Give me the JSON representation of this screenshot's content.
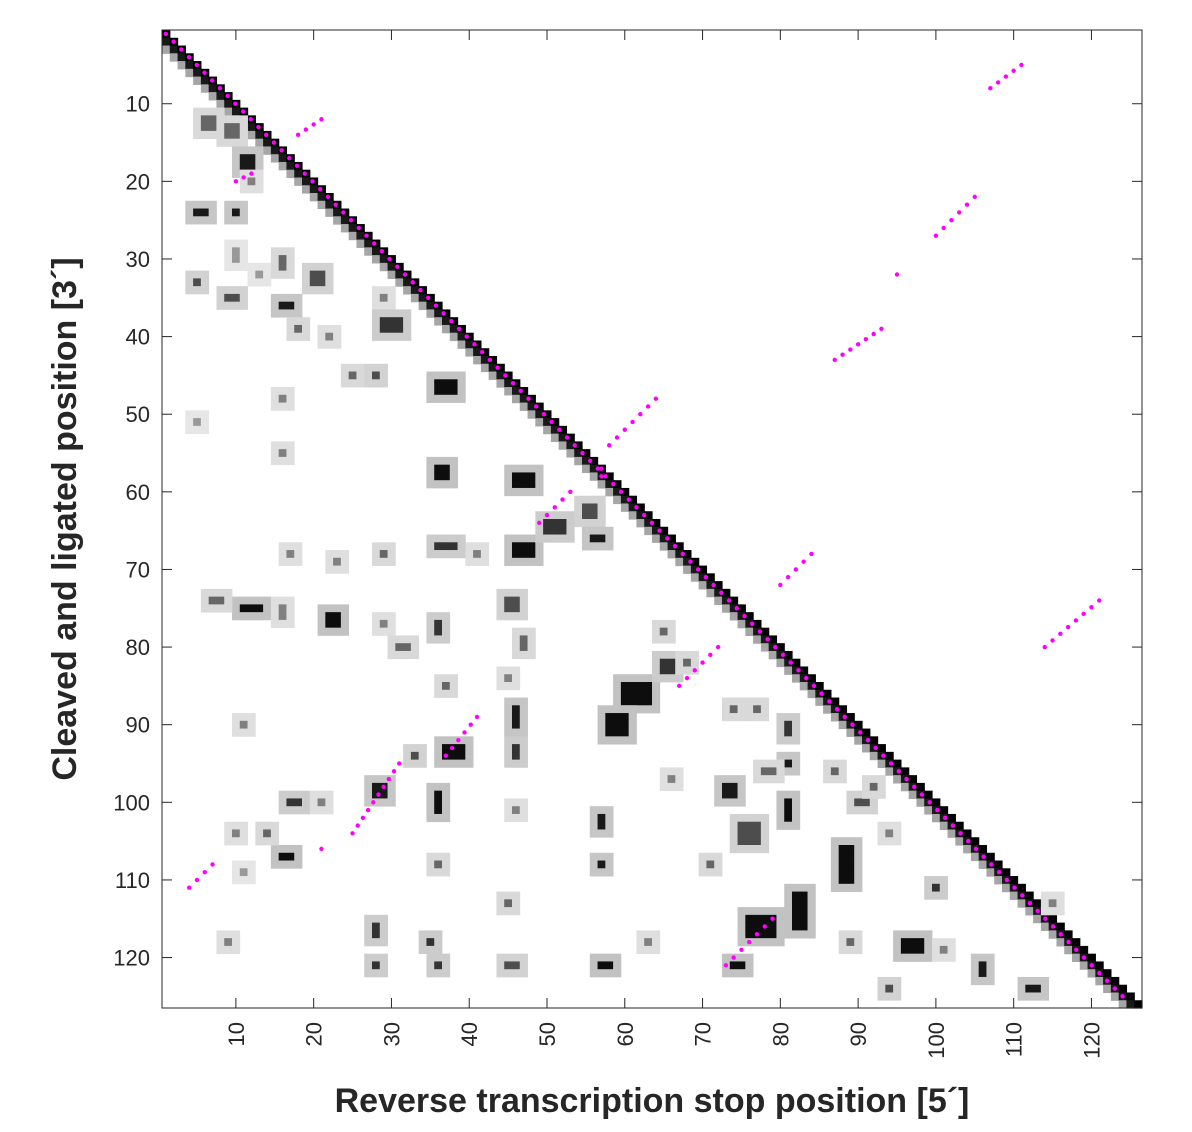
{
  "chart_data": {
    "type": "heatmap",
    "title": "",
    "xlabel": "Reverse transcription stop position [5´]",
    "ylabel": "Cleaved and ligated position [3´]",
    "xlim": [
      0,
      126
    ],
    "ylim": [
      126,
      0
    ],
    "x_ticks": [
      10,
      20,
      30,
      40,
      50,
      60,
      70,
      80,
      90,
      100,
      110,
      120
    ],
    "y_ticks": [
      10,
      20,
      30,
      40,
      50,
      60,
      70,
      80,
      90,
      100,
      110,
      120
    ],
    "colormap": [
      "#ffffff",
      "#000000"
    ],
    "diagonal": {
      "from": 1,
      "to": 126,
      "offset": 3
    },
    "blobs": [
      [
        6,
        12,
        2,
        2,
        0.6
      ],
      [
        9,
        13,
        2,
        2,
        0.6
      ],
      [
        11,
        17,
        2,
        2,
        0.9
      ],
      [
        12,
        20,
        1,
        1,
        0.5
      ],
      [
        5,
        24,
        2,
        1,
        0.9
      ],
      [
        10,
        24,
        1,
        1,
        0.9
      ],
      [
        10,
        29,
        1,
        2,
        0.4
      ],
      [
        5,
        33,
        1,
        1,
        0.7
      ],
      [
        9,
        35,
        2,
        1,
        0.7
      ],
      [
        13,
        32,
        1,
        1,
        0.4
      ],
      [
        16,
        30,
        1,
        2,
        0.6
      ],
      [
        16,
        36,
        2,
        1,
        0.9
      ],
      [
        20,
        32,
        2,
        2,
        0.7
      ],
      [
        18,
        39,
        1,
        1,
        0.6
      ],
      [
        22,
        40,
        1,
        1,
        0.5
      ],
      [
        29,
        35,
        1,
        1,
        0.5
      ],
      [
        29,
        38,
        3,
        2,
        0.8
      ],
      [
        25,
        45,
        1,
        1,
        0.6
      ],
      [
        28,
        45,
        1,
        1,
        0.7
      ],
      [
        16,
        48,
        1,
        1,
        0.5
      ],
      [
        5,
        51,
        1,
        1,
        0.4
      ],
      [
        16,
        55,
        1,
        1,
        0.5
      ],
      [
        36,
        46,
        3,
        2,
        0.95
      ],
      [
        36,
        57,
        2,
        2,
        0.95
      ],
      [
        46,
        58,
        3,
        2,
        0.95
      ],
      [
        46,
        67,
        3,
        2,
        0.95
      ],
      [
        50,
        64,
        3,
        2,
        0.8
      ],
      [
        55,
        62,
        2,
        2,
        0.7
      ],
      [
        56,
        66,
        2,
        1,
        0.9
      ],
      [
        36,
        67,
        3,
        1,
        0.8
      ],
      [
        41,
        68,
        1,
        1,
        0.5
      ],
      [
        29,
        68,
        1,
        1,
        0.6
      ],
      [
        23,
        69,
        1,
        1,
        0.5
      ],
      [
        17,
        68,
        1,
        1,
        0.5
      ],
      [
        11,
        75,
        3,
        1,
        0.95
      ],
      [
        7,
        74,
        2,
        1,
        0.6
      ],
      [
        22,
        76,
        2,
        2,
        0.95
      ],
      [
        16,
        75,
        1,
        2,
        0.5
      ],
      [
        29,
        77,
        1,
        1,
        0.5
      ],
      [
        36,
        77,
        1,
        2,
        0.8
      ],
      [
        31,
        80,
        2,
        1,
        0.6
      ],
      [
        45,
        74,
        2,
        2,
        0.7
      ],
      [
        47,
        79,
        1,
        2,
        0.6
      ],
      [
        45,
        84,
        1,
        1,
        0.5
      ],
      [
        37,
        85,
        1,
        1,
        0.6
      ],
      [
        60,
        85,
        4,
        3,
        0.95
      ],
      [
        58,
        89,
        3,
        3,
        0.95
      ],
      [
        65,
        82,
        2,
        2,
        0.8
      ],
      [
        65,
        78,
        1,
        1,
        0.6
      ],
      [
        68,
        82,
        1,
        1,
        0.6
      ],
      [
        46,
        88,
        1,
        3,
        0.9
      ],
      [
        46,
        93,
        1,
        2,
        0.8
      ],
      [
        11,
        90,
        1,
        1,
        0.5
      ],
      [
        37,
        93,
        3,
        2,
        0.95
      ],
      [
        33,
        94,
        1,
        1,
        0.7
      ],
      [
        28,
        98,
        2,
        2,
        0.9
      ],
      [
        17,
        100,
        2,
        1,
        0.8
      ],
      [
        21,
        100,
        1,
        1,
        0.5
      ],
      [
        36,
        99,
        1,
        3,
        0.95
      ],
      [
        36,
        108,
        1,
        1,
        0.6
      ],
      [
        16,
        107,
        2,
        1,
        0.95
      ],
      [
        14,
        104,
        1,
        1,
        0.6
      ],
      [
        10,
        104,
        1,
        1,
        0.5
      ],
      [
        11,
        109,
        1,
        1,
        0.4
      ],
      [
        9,
        118,
        1,
        1,
        0.5
      ],
      [
        28,
        116,
        1,
        2,
        0.8
      ],
      [
        28,
        121,
        1,
        1,
        0.8
      ],
      [
        35,
        118,
        1,
        1,
        0.8
      ],
      [
        36,
        121,
        1,
        1,
        0.8
      ],
      [
        45,
        121,
        2,
        1,
        0.7
      ],
      [
        45,
        113,
        1,
        1,
        0.6
      ],
      [
        46,
        101,
        1,
        1,
        0.5
      ],
      [
        57,
        102,
        1,
        2,
        0.9
      ],
      [
        57,
        108,
        1,
        1,
        0.9
      ],
      [
        57,
        121,
        2,
        1,
        0.95
      ],
      [
        63,
        118,
        1,
        1,
        0.5
      ],
      [
        66,
        97,
        1,
        1,
        0.5
      ],
      [
        73,
        98,
        2,
        2,
        0.9
      ],
      [
        74,
        88,
        1,
        1,
        0.6
      ],
      [
        77,
        88,
        1,
        1,
        0.6
      ],
      [
        81,
        90,
        1,
        2,
        0.8
      ],
      [
        81,
        95,
        1,
        1,
        0.9
      ],
      [
        78,
        96,
        2,
        1,
        0.6
      ],
      [
        81,
        100,
        1,
        3,
        0.95
      ],
      [
        75,
        103,
        3,
        3,
        0.7
      ],
      [
        76,
        115,
        4,
        3,
        0.95
      ],
      [
        74,
        121,
        2,
        1,
        0.95
      ],
      [
        82,
        112,
        2,
        5,
        0.95
      ],
      [
        88,
        106,
        2,
        5,
        0.95
      ],
      [
        90,
        100,
        2,
        1,
        0.7
      ],
      [
        92,
        98,
        1,
        1,
        0.6
      ],
      [
        94,
        104,
        1,
        1,
        0.5
      ],
      [
        96,
        118,
        3,
        2,
        0.95
      ],
      [
        89,
        118,
        1,
        1,
        0.6
      ],
      [
        100,
        111,
        1,
        1,
        0.8
      ],
      [
        101,
        119,
        1,
        1,
        0.5
      ],
      [
        106,
        121,
        1,
        2,
        0.9
      ],
      [
        94,
        124,
        1,
        1,
        0.7
      ],
      [
        112,
        124,
        2,
        1,
        0.9
      ],
      [
        115,
        113,
        1,
        1,
        0.5
      ],
      [
        87,
        96,
        1,
        1,
        0.6
      ],
      [
        71,
        108,
        1,
        1,
        0.6
      ]
    ],
    "overlay": {
      "color": "#ff00ff",
      "segments": [
        [
          1,
          1,
          124,
          125
        ],
        [
          111,
          5,
          107,
          8
        ],
        [
          18,
          14,
          21,
          12
        ],
        [
          105,
          22,
          100,
          27
        ],
        [
          95,
          32,
          95,
          32
        ],
        [
          93,
          39,
          87,
          43
        ],
        [
          64,
          48,
          58,
          54
        ],
        [
          84,
          68,
          80,
          72
        ],
        [
          121,
          74,
          114,
          80
        ],
        [
          10,
          20,
          12,
          19
        ],
        [
          49,
          64,
          53,
          60
        ],
        [
          57,
          57,
          57,
          58
        ],
        [
          72,
          80,
          67,
          85
        ],
        [
          41,
          89,
          37,
          94
        ],
        [
          31,
          95,
          25,
          104
        ],
        [
          21,
          106,
          21,
          106
        ],
        [
          7,
          108,
          4,
          111
        ],
        [
          79,
          115,
          73,
          121
        ]
      ]
    }
  }
}
